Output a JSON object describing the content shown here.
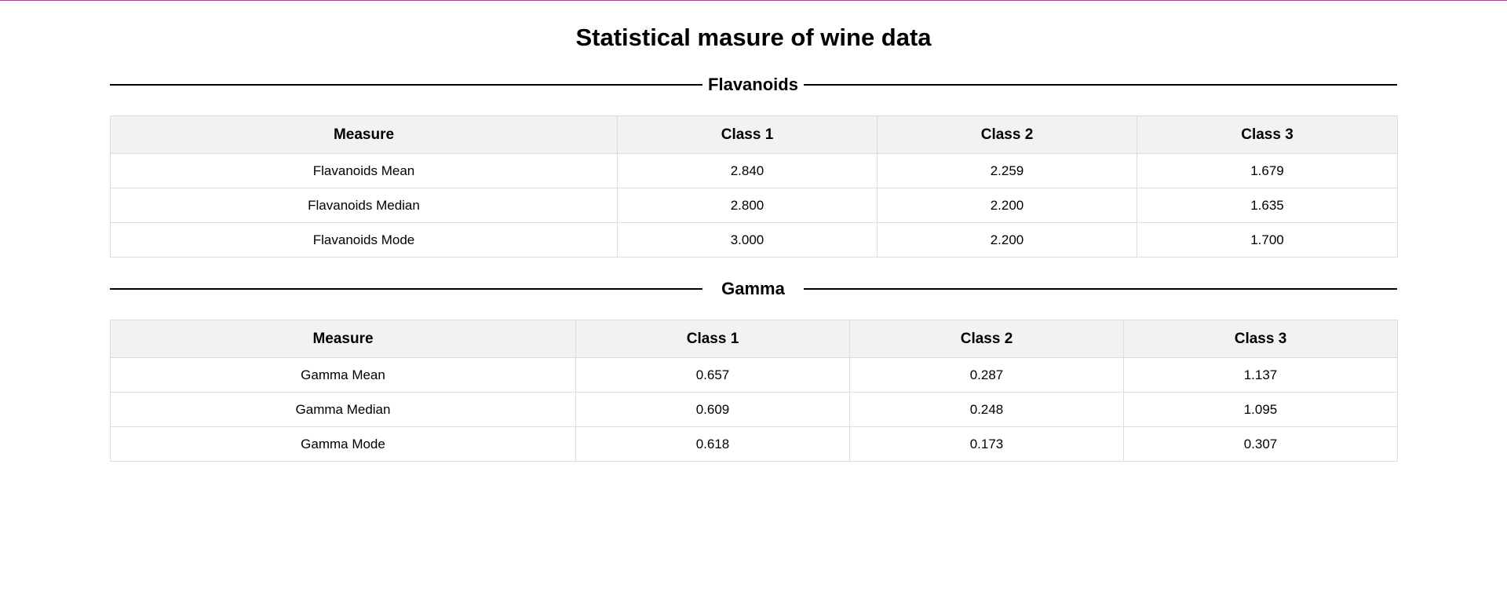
{
  "page": {
    "title": "Statistical masure of wine data"
  },
  "sections": [
    {
      "title": "Flavanoids",
      "headers": [
        "Measure",
        "Class 1",
        "Class 2",
        "Class 3"
      ],
      "rows": [
        [
          "Flavanoids Mean",
          "2.840",
          "2.259",
          "1.679"
        ],
        [
          "Flavanoids Median",
          "2.800",
          "2.200",
          "1.635"
        ],
        [
          "Flavanoids Mode",
          "3.000",
          "2.200",
          "1.700"
        ]
      ]
    },
    {
      "title": "Gamma",
      "headers": [
        "Measure",
        "Class 1",
        "Class 2",
        "Class 3"
      ],
      "rows": [
        [
          "Gamma Mean",
          "0.657",
          "0.287",
          "1.137"
        ],
        [
          "Gamma Median",
          "0.609",
          "0.248",
          "1.095"
        ],
        [
          "Gamma Mode",
          "0.618",
          "0.173",
          "0.307"
        ]
      ]
    }
  ],
  "colors": {
    "accent_line": "#a53f8f",
    "header_bg": "#f2f2f2",
    "border": "#dddddd"
  }
}
